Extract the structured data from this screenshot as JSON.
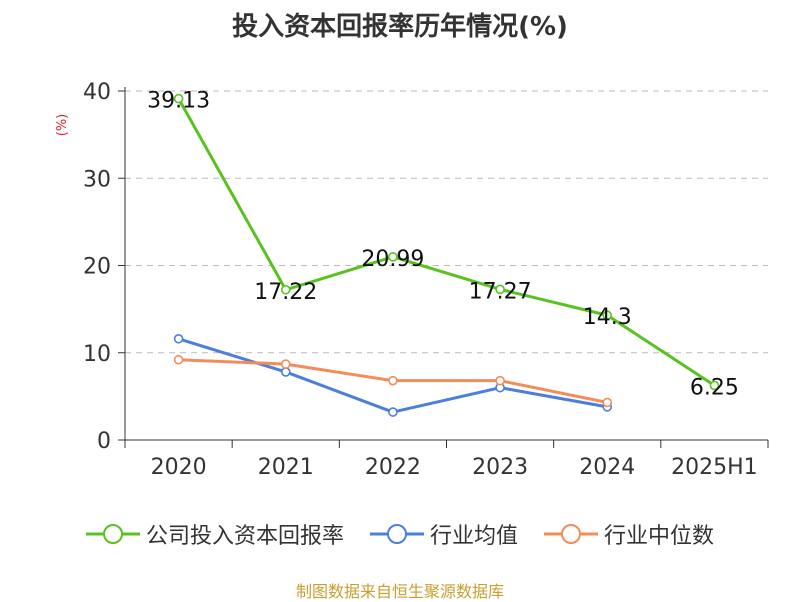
{
  "chart_data": {
    "type": "line",
    "title": "投入资本回报率历年情况(%)",
    "ylabel": "(%)",
    "categories": [
      "2020",
      "2021",
      "2022",
      "2023",
      "2024",
      "2025H1"
    ],
    "ylim": [
      0,
      40
    ],
    "yticks": [
      0,
      10,
      20,
      30,
      40
    ],
    "grid": true,
    "legend_position": "bottom",
    "series": [
      {
        "name": "公司投入资本回报率",
        "color": "#5ac21f",
        "values": [
          39.13,
          17.22,
          20.99,
          17.27,
          14.3,
          6.25
        ],
        "labels": [
          "39.13",
          "17.22",
          "20.99",
          "17.27",
          "14.3",
          "6.25"
        ]
      },
      {
        "name": "行业均值",
        "color": "#4a7fdc",
        "values": [
          11.6,
          7.8,
          3.2,
          6.0,
          3.8,
          null
        ]
      },
      {
        "name": "行业中位数",
        "color": "#f48c5a",
        "values": [
          9.2,
          8.7,
          6.8,
          6.8,
          4.3,
          null
        ]
      }
    ]
  },
  "source": "制图数据来自恒生聚源数据库"
}
